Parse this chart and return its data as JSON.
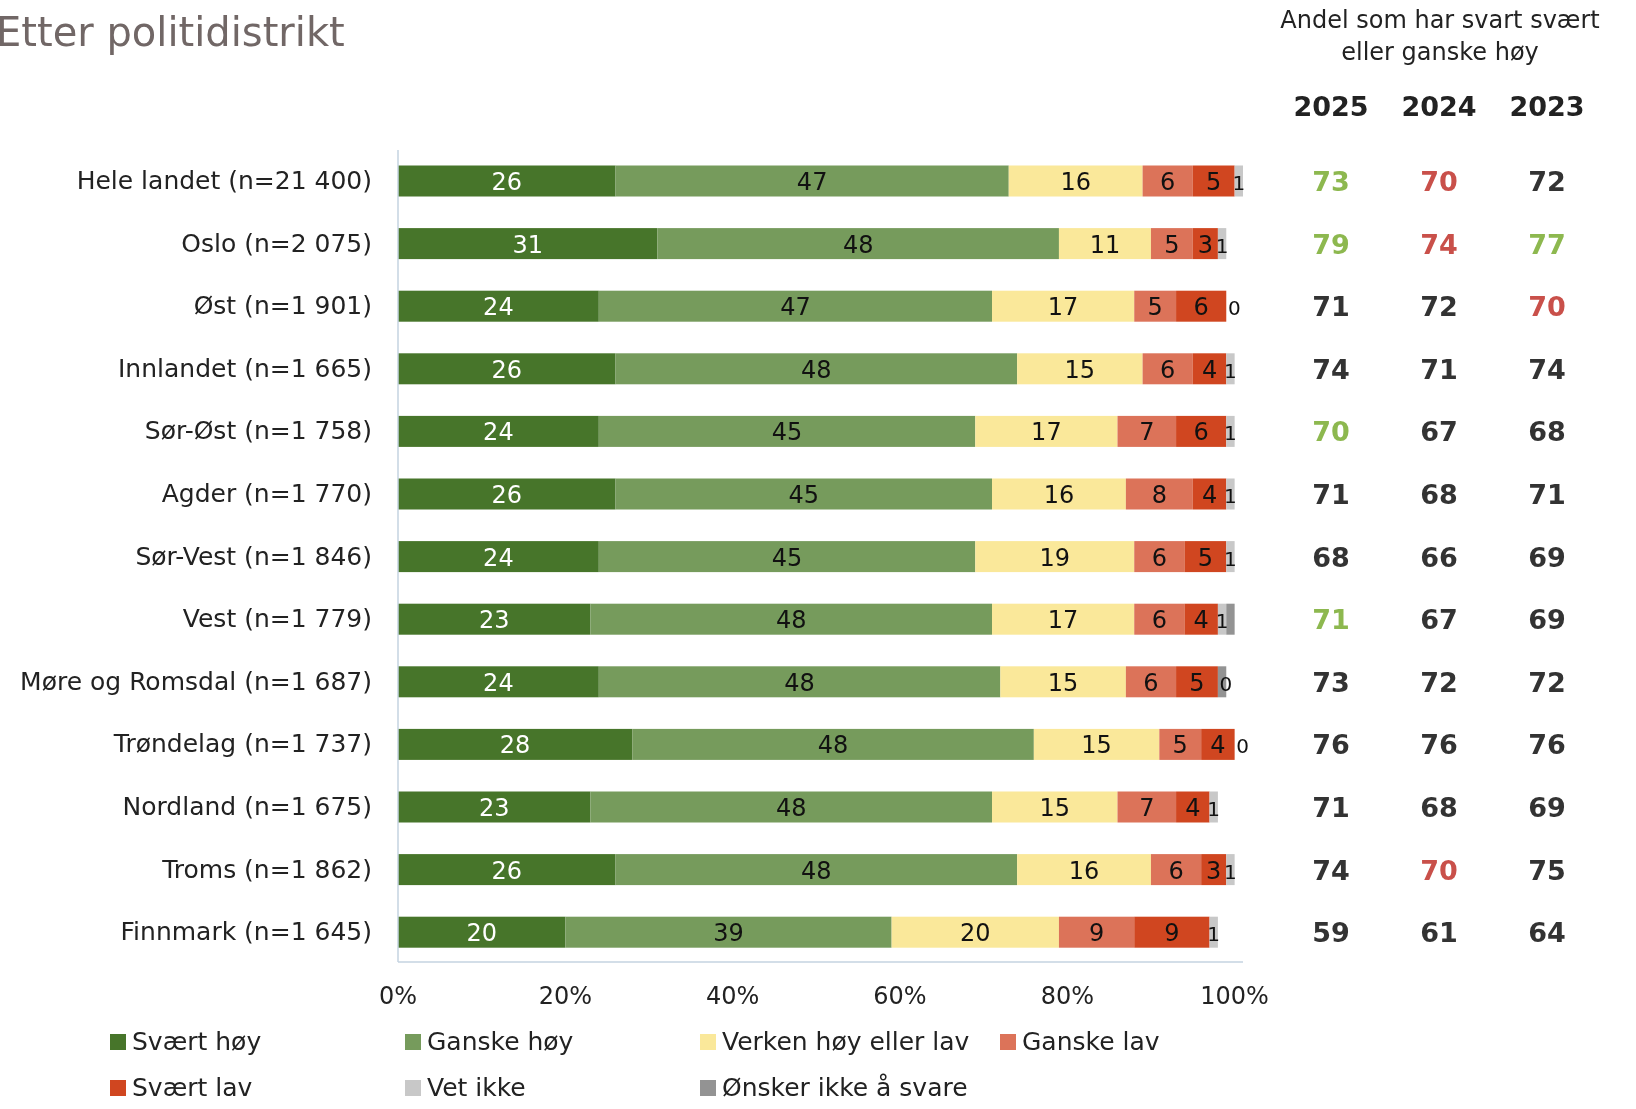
{
  "chart_data": [
    {
      "type": "bar",
      "orientation": "horizontal",
      "stacked": true,
      "title": "Etter politidistrikt",
      "categories": [
        "Hele landet (n=21 400)",
        "Oslo (n=2 075)",
        "Øst (n=1 901)",
        "Innlandet (n=1 665)",
        "Sør-Øst (n=1 758)",
        "Agder (n=1 770)",
        "Sør-Vest (n=1 846)",
        "Vest (n=1 779)",
        "Møre og Romsdal (n=1 687)",
        "Trøndelag (n=1 737)",
        "Nordland (n=1 675)",
        "Troms (n=1 862)",
        "Finnmark (n=1 645)"
      ],
      "series": [
        {
          "name": "Svært høy",
          "color": "#47752a",
          "values": [
            26,
            31,
            24,
            26,
            24,
            26,
            24,
            23,
            24,
            28,
            23,
            26,
            20
          ],
          "value_labels": [
            "26",
            "31",
            "24",
            "26",
            "24",
            "26",
            "24",
            "23",
            "24",
            "28",
            "23",
            "26",
            "20"
          ]
        },
        {
          "name": "Ganske høy",
          "color": "#769b5c",
          "values": [
            47,
            48,
            47,
            48,
            45,
            45,
            45,
            48,
            48,
            48,
            48,
            48,
            39
          ],
          "value_labels": [
            "47",
            "48",
            "47",
            "48",
            "45",
            "45",
            "45",
            "48",
            "48",
            "48",
            "48",
            "48",
            "39"
          ]
        },
        {
          "name": "Verken høy eller lav",
          "color": "#fae89a",
          "values": [
            16,
            11,
            17,
            15,
            17,
            16,
            19,
            17,
            15,
            15,
            15,
            16,
            20
          ],
          "value_labels": [
            "16",
            "11",
            "17",
            "15",
            "17",
            "16",
            "19",
            "17",
            "15",
            "15",
            "15",
            "16",
            "20"
          ]
        },
        {
          "name": "Ganske lav",
          "color": "#dc7359",
          "values": [
            6,
            5,
            5,
            6,
            7,
            8,
            6,
            6,
            6,
            5,
            7,
            6,
            9
          ],
          "value_labels": [
            "6",
            "5",
            "5",
            "6",
            "7",
            "8",
            "6",
            "6",
            "6",
            "5",
            "7",
            "6",
            "9"
          ]
        },
        {
          "name": "Svært lav",
          "color": "#d04620",
          "values": [
            5,
            3,
            6,
            4,
            6,
            4,
            5,
            4,
            5,
            4,
            4,
            3,
            9
          ],
          "value_labels": [
            "5",
            "3",
            "6",
            "4",
            "6",
            "4",
            "5",
            "4",
            "5",
            "4",
            "4",
            "3",
            "9"
          ]
        },
        {
          "name": "Vet ikke",
          "color": "#c8c8c8",
          "values": [
            1,
            1,
            0,
            1,
            1,
            1,
            1,
            1,
            0,
            0,
            1,
            1,
            1
          ],
          "value_labels": [
            "1",
            "1",
            "0",
            "1",
            "1",
            "1",
            "1",
            "1",
            "0",
            "0",
            "1",
            "1",
            "1"
          ]
        },
        {
          "name": "Ønsker ikke å svare",
          "color": "#939393",
          "values": [
            0,
            0,
            0,
            0,
            0,
            0,
            0,
            1,
            1,
            0,
            0,
            0,
            0
          ],
          "value_labels": [
            null,
            null,
            null,
            null,
            null,
            null,
            null,
            null,
            null,
            null,
            null,
            null,
            null
          ]
        }
      ],
      "xlim": [
        0,
        101
      ],
      "xticks": [
        {
          "value": 0,
          "label": "0%"
        },
        {
          "value": 20,
          "label": "20%"
        },
        {
          "value": 40,
          "label": "40%"
        },
        {
          "value": 60,
          "label": "60%"
        },
        {
          "value": 80,
          "label": "80%"
        },
        {
          "value": 100,
          "label": "100%"
        }
      ],
      "legend": "bottom"
    },
    {
      "type": "heatmap",
      "title": "Andel som har svart svært eller ganske høy",
      "data_labels": true,
      "categories": [
        "2025",
        "2024",
        "2023"
      ],
      "y_categories": [
        null,
        null,
        null,
        null,
        null,
        null,
        null,
        null,
        null,
        null,
        null,
        null,
        null
      ],
      "cells": [
        [
          73,
          70,
          72
        ],
        [
          79,
          74,
          77
        ],
        [
          71,
          72,
          70
        ],
        [
          74,
          71,
          74
        ],
        [
          70,
          67,
          68
        ],
        [
          71,
          68,
          71
        ],
        [
          68,
          66,
          69
        ],
        [
          71,
          67,
          69
        ],
        [
          73,
          72,
          72
        ],
        [
          76,
          76,
          76
        ],
        [
          71,
          68,
          69
        ],
        [
          74,
          70,
          75
        ],
        [
          59,
          61,
          64
        ]
      ],
      "colors": [
        [
          "#8db84f",
          "#c9504a",
          "#333333"
        ],
        [
          "#8db84f",
          "#c9504a",
          "#8db84f"
        ],
        [
          "#333333",
          "#333333",
          "#c9504a"
        ],
        [
          "#333333",
          "#333333",
          "#333333"
        ],
        [
          "#8db84f",
          "#333333",
          "#333333"
        ],
        [
          "#333333",
          "#333333",
          "#333333"
        ],
        [
          "#333333",
          "#333333",
          "#333333"
        ],
        [
          "#8db84f",
          "#333333",
          "#333333"
        ],
        [
          "#333333",
          "#333333",
          "#333333"
        ],
        [
          "#333333",
          "#333333",
          "#333333"
        ],
        [
          "#333333",
          "#333333",
          "#333333"
        ],
        [
          "#333333",
          "#c9504a",
          "#333333"
        ],
        [
          "#333333",
          "#333333",
          "#333333"
        ]
      ]
    }
  ]
}
